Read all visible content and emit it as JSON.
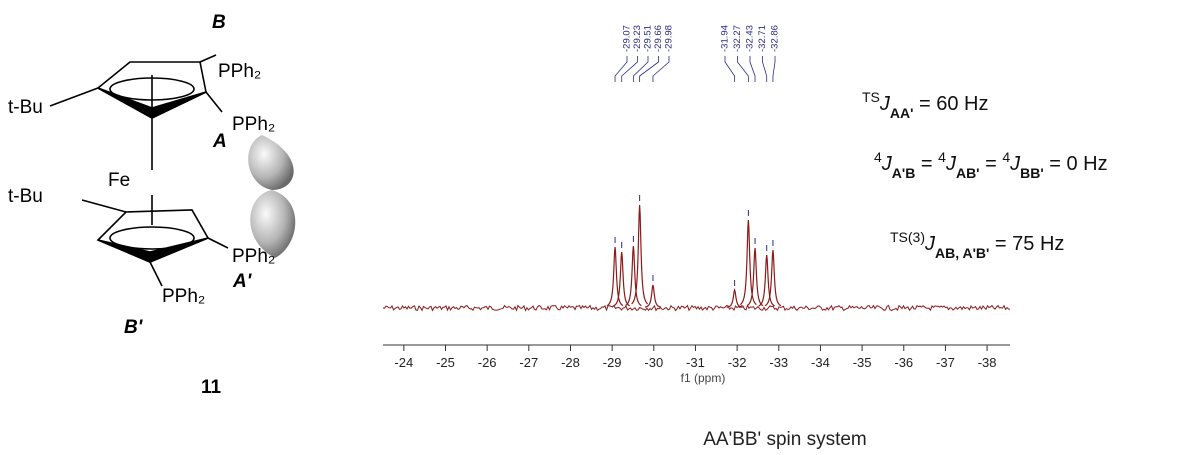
{
  "molecule": {
    "labels": [
      "B",
      "PPh₂",
      "t-Bu",
      "PPh₂",
      "A",
      "Fe",
      "t-Bu",
      "PPh₂",
      "A'",
      "PPh₂",
      "B'"
    ],
    "number": "11"
  },
  "chart_data": {
    "type": "nmr",
    "xlabel": "f1 (ppm)",
    "xlim": [
      -23.5,
      -38.55
    ],
    "xticks": [
      -24,
      -25,
      -26,
      -27,
      -28,
      -29,
      -30,
      -31,
      -32,
      -33,
      -34,
      -35,
      -36,
      -37,
      -38
    ],
    "peaks": [
      -29.07,
      -29.23,
      -29.51,
      -29.66,
      -29.98,
      -31.94,
      -32.27,
      -32.43,
      -32.71,
      -32.86
    ],
    "intensities": [
      61,
      56,
      62,
      103,
      23,
      18,
      88,
      60,
      53,
      58
    ],
    "color": "#8b1a1a",
    "label_color": "#2a2a8a"
  },
  "equations": [
    [
      {
        "sup": "TS"
      },
      {
        "i": "J"
      },
      {
        "sub": "AA'"
      },
      {
        "t": " = 60 Hz"
      }
    ],
    [
      {
        "sup": "4"
      },
      {
        "i": "J"
      },
      {
        "sub": "A'B"
      },
      {
        "t": " = "
      },
      {
        "sup": "4"
      },
      {
        "i": "J"
      },
      {
        "sub": "AB'"
      },
      {
        "t": " = "
      },
      {
        "sup": "4"
      },
      {
        "i": "J"
      },
      {
        "sub": "BB'"
      },
      {
        "t": " = 0 Hz"
      }
    ],
    [
      {
        "sup": "TS(3)"
      },
      {
        "i": "J"
      },
      {
        "sub": "AB, A'B'"
      },
      {
        "t": " = 75 Hz"
      }
    ]
  ],
  "caption": "AA'BB' spin system"
}
